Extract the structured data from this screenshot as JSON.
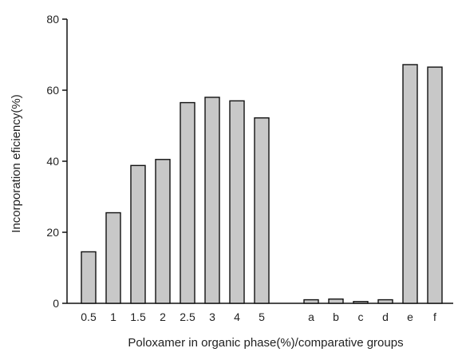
{
  "chart_data": {
    "type": "bar",
    "title": "",
    "xlabel": "Poloxamer in organic phase(%)/comparative groups",
    "ylabel": "Incorporation eficiency(%)",
    "ylim": [
      0,
      80
    ],
    "yticks": [
      0,
      20,
      40,
      60,
      80
    ],
    "grid": false,
    "legend": "none",
    "categories": [
      "0.5",
      "1",
      "1.5",
      "2",
      "2.5",
      "3",
      "4",
      "5",
      "a",
      "b",
      "c",
      "d",
      "e",
      "f"
    ],
    "values": [
      14.5,
      25.5,
      38.8,
      40.5,
      56.5,
      58.0,
      57.0,
      52.2,
      1.0,
      1.2,
      0.5,
      1.0,
      67.2,
      66.5
    ],
    "bar_color": "#c8c8c8",
    "edge_color": "#111111"
  }
}
